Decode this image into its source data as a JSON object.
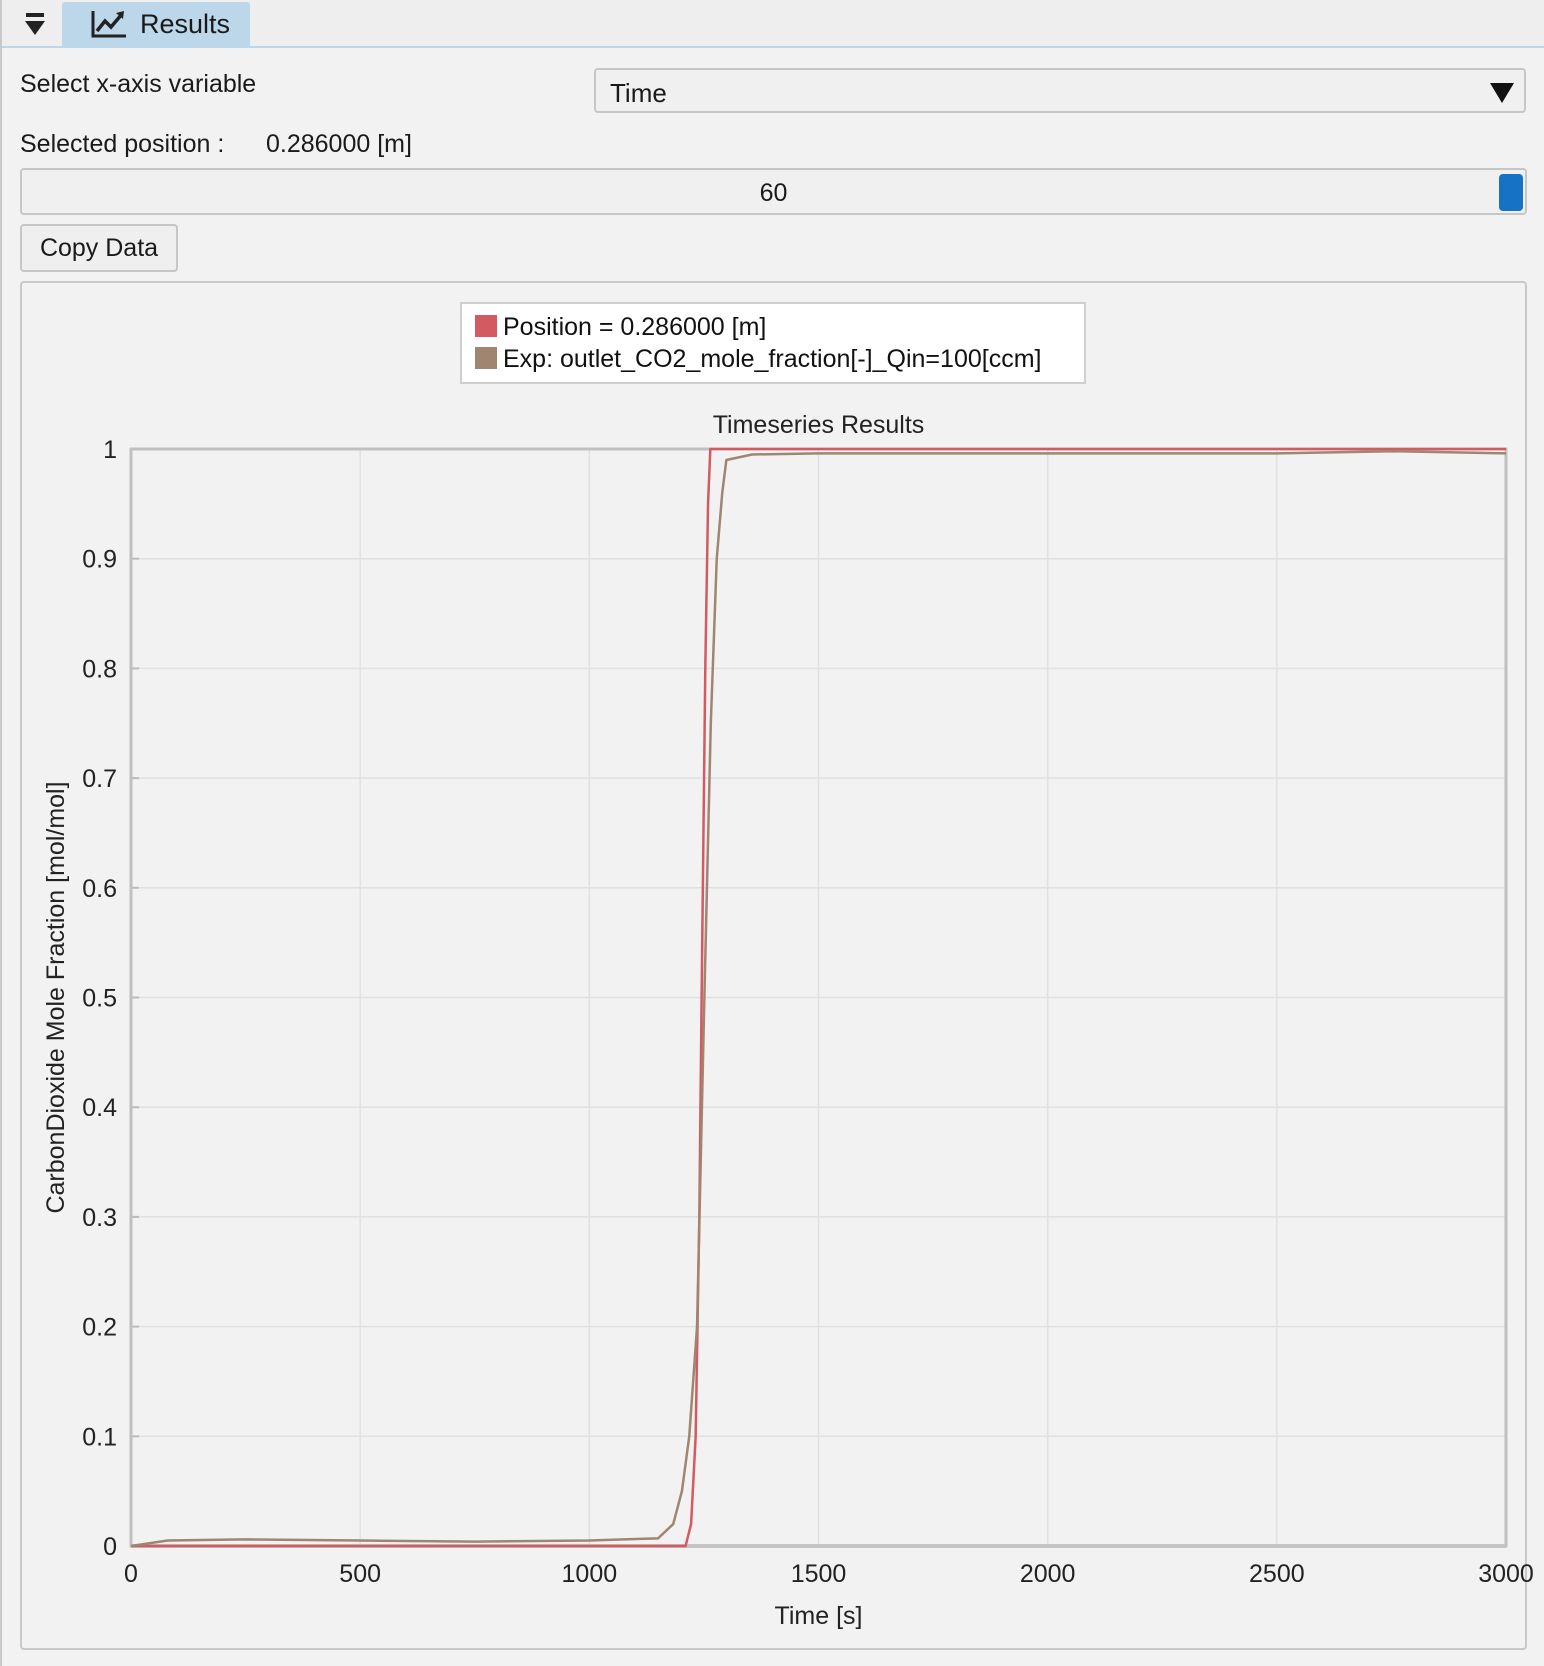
{
  "tab": {
    "label": "Results",
    "icon": "line-chart-icon",
    "collapse_icon": "collapse-arrow-icon"
  },
  "controls": {
    "xaxis_label": "Select x-axis variable",
    "xaxis_value": "Time",
    "position_label": "Selected position :",
    "position_value": "0.286000 [m]",
    "slider_value": "60",
    "copy_button": "Copy Data"
  },
  "colors": {
    "accent": "#1572c4",
    "tab_bg": "#bcd6ea"
  },
  "chart_data": {
    "type": "line",
    "title": "Timeseries Results",
    "xlabel": "Time [s]",
    "ylabel": "CarbonDioxide Mole Fraction [mol/mol]",
    "xlim": [
      0,
      3000
    ],
    "ylim": [
      0,
      1
    ],
    "xticks": [
      "0",
      "500",
      "1000",
      "1500",
      "2000",
      "2500",
      "3000"
    ],
    "yticks": [
      "0",
      "0.1",
      "0.2",
      "0.3",
      "0.4",
      "0.5",
      "0.6",
      "0.7",
      "0.8",
      "0.9",
      "1"
    ],
    "grid": true,
    "legend_position": "top-center",
    "series": [
      {
        "name": "Position = 0.286000 [m]",
        "color": "#d45a62",
        "x": [
          0,
          1210,
          1222,
          1232,
          1240,
          1245,
          1253,
          1259,
          1264,
          3000
        ],
        "y": [
          0,
          0,
          0.02,
          0.1,
          0.3,
          0.5,
          0.8,
          0.95,
          1,
          1
        ]
      },
      {
        "name": "Exp: outlet_CO2_mole_fraction[-]_Qin=100[ccm]",
        "color": "#a08670",
        "x": [
          0,
          80,
          250,
          500,
          750,
          1000,
          1150,
          1183,
          1202,
          1218,
          1235,
          1251,
          1265,
          1278,
          1290,
          1299,
          1355,
          1500,
          2000,
          2500,
          2750,
          3000
        ],
        "y": [
          0,
          0.005,
          0.006,
          0.005,
          0.004,
          0.005,
          0.007,
          0.02,
          0.05,
          0.1,
          0.2,
          0.5,
          0.75,
          0.9,
          0.96,
          0.99,
          0.995,
          0.996,
          0.996,
          0.996,
          0.998,
          0.996
        ]
      }
    ]
  }
}
